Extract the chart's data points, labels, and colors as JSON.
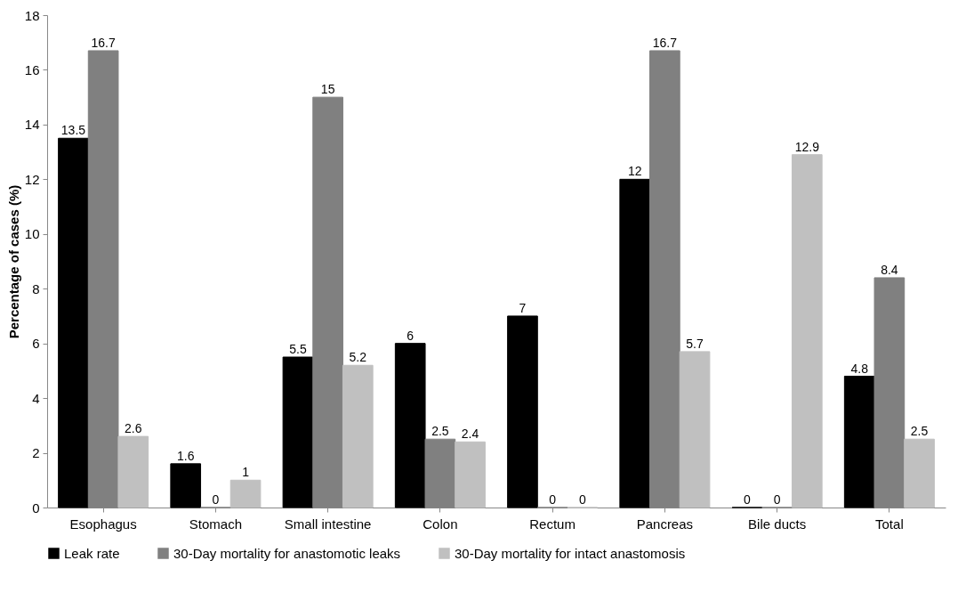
{
  "chart_data": {
    "type": "bar",
    "ylabel": "Percentage of cases (%)",
    "categories": [
      "Esophagus",
      "Stomach",
      "Small intestine",
      "Colon",
      "Rectum",
      "Pancreas",
      "Bile ducts",
      "Total"
    ],
    "series": [
      {
        "name": "Leak rate",
        "color": "#000000",
        "values": [
          13.5,
          1.6,
          5.5,
          6,
          7,
          12,
          0,
          4.8
        ]
      },
      {
        "name": "30-Day mortality for anastomotic leaks",
        "color": "#808080",
        "values": [
          16.7,
          0,
          15,
          2.5,
          0,
          16.7,
          0,
          8.4
        ]
      },
      {
        "name": "30-Day mortality for intact anastomosis",
        "color": "#c0c0c0",
        "values": [
          2.6,
          1,
          5.2,
          2.4,
          0,
          5.7,
          12.9,
          2.5
        ]
      }
    ],
    "ylim": [
      0,
      18
    ],
    "yticks": [
      0,
      2,
      4,
      6,
      8,
      10,
      12,
      14,
      16,
      18
    ],
    "grid": false,
    "legend": "bottom",
    "data_labels": true
  }
}
